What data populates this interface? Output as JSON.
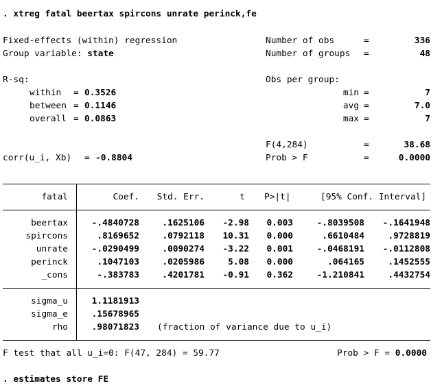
{
  "command": ". xtreg fatal beertax spircons unrate perinck,fe",
  "header": {
    "title": "Fixed-effects (within) regression",
    "group_label": "Group variable: ",
    "group_var": "state",
    "nobs_label": "Number of obs",
    "nobs": "336",
    "ngroups_label": "Number of groups",
    "ngroups": "48",
    "eq": "="
  },
  "rsq": {
    "label": "R-sq:",
    "within_label": "within",
    "within": "0.3526",
    "between_label": "between",
    "between": "0.1146",
    "overall_label": "overall",
    "overall": "0.0863"
  },
  "obs_per_group": {
    "label": "Obs per group:",
    "min_label": "min",
    "min": "7",
    "avg_label": "avg",
    "avg": "7.0",
    "max_label": "max",
    "max": "7"
  },
  "ftest": {
    "f_label": "F(4,284)",
    "f_value": "38.68",
    "prob_label": "Prob > F",
    "prob_value": "0.0000"
  },
  "corr": {
    "label": "corr(u_i, Xb)",
    "value": "-0.8804"
  },
  "table": {
    "depvar": "fatal",
    "headers": [
      "Coef.",
      "Std. Err.",
      "t",
      "P>|t|",
      "[95% Conf. Interval]"
    ],
    "rows": [
      {
        "var": "beertax",
        "coef": "-.4840728",
        "se": ".1625106",
        "t": "-2.98",
        "p": "0.003",
        "lo": "-.8039508",
        "hi": "-.1641948"
      },
      {
        "var": "spircons",
        "coef": ".8169652",
        "se": ".0792118",
        "t": "10.31",
        "p": "0.000",
        "lo": ".6610484",
        "hi": ".9728819"
      },
      {
        "var": "unrate",
        "coef": "-.0290499",
        "se": ".0090274",
        "t": "-3.22",
        "p": "0.001",
        "lo": "-.0468191",
        "hi": "-.0112808"
      },
      {
        "var": "perinck",
        "coef": ".1047103",
        "se": ".0205986",
        "t": "5.08",
        "p": "0.000",
        "lo": ".064165",
        "hi": ".1452555"
      },
      {
        "var": "_cons",
        "coef": "-.383783",
        "se": ".4201781",
        "t": "-0.91",
        "p": "0.362",
        "lo": "-1.210841",
        "hi": ".4432754"
      }
    ],
    "sigma_u_label": "sigma_u",
    "sigma_u": "1.1181913",
    "sigma_e_label": "sigma_e",
    "sigma_e": ".15678965",
    "rho_label": "rho",
    "rho": ".98071823",
    "rho_note": "(fraction of variance due to u_i)"
  },
  "footer": {
    "ftest_text": "F test that all u_i=0: F(47, 284) = 59.77",
    "prob_text": "Prob > F = ",
    "prob_value": "0.0000"
  },
  "next_command": ". estimates store FE"
}
